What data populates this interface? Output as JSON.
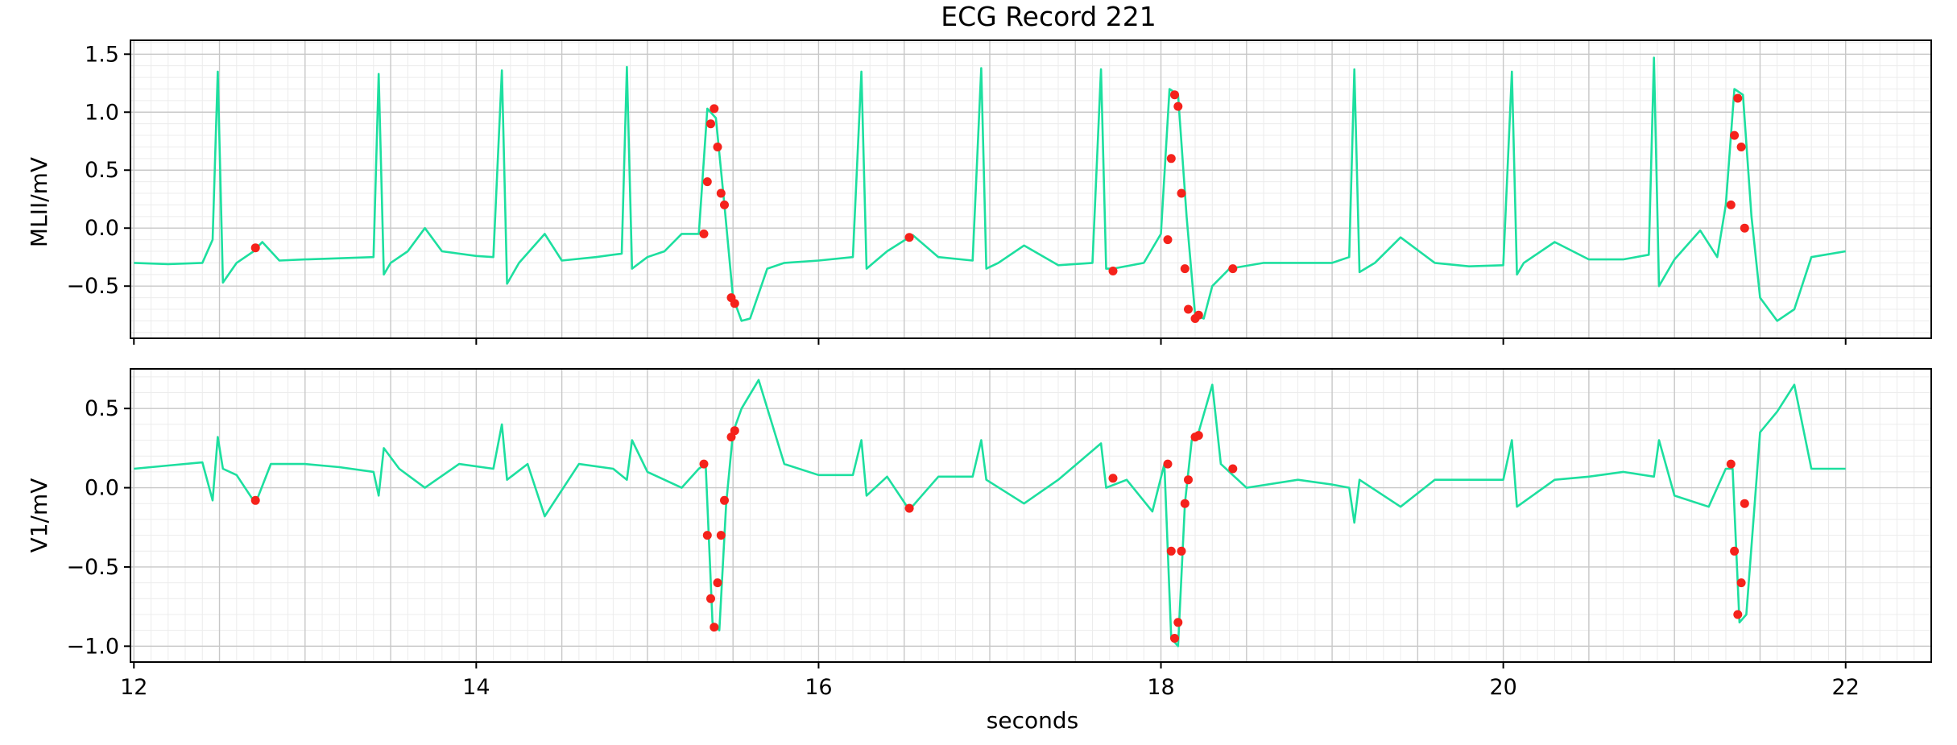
{
  "chart_data": {
    "type": "line",
    "title": "ECG Record 221",
    "xlabel": "seconds",
    "xlim": [
      11.98,
      22.5
    ],
    "x_ticks": [
      "12",
      "14",
      "16",
      "18",
      "20",
      "22"
    ],
    "x_tick_values": [
      12,
      14,
      16,
      18,
      20,
      22
    ],
    "grid": true,
    "minor_grid": true,
    "colors": {
      "signal": "#1ddf9f",
      "annotation": "#f5221b",
      "major_grid": "#c8c8c8",
      "minor_grid": "#ececec"
    },
    "panels": [
      {
        "ylabel": "MLII/mV",
        "ylim": [
          -0.95,
          1.62
        ],
        "y_ticks": [
          "1.5",
          "1.0",
          "0.5",
          "0.0",
          "−0.5"
        ],
        "y_tick_values": [
          1.5,
          1.0,
          0.5,
          0.0,
          -0.5
        ],
        "series": {
          "x": [
            12.0,
            12.2,
            12.4,
            12.46,
            12.49,
            12.52,
            12.6,
            12.7,
            12.75,
            12.85,
            13.0,
            13.2,
            13.4,
            13.43,
            13.46,
            13.5,
            13.6,
            13.7,
            13.8,
            14.0,
            14.1,
            14.15,
            14.18,
            14.25,
            14.4,
            14.5,
            14.7,
            14.85,
            14.88,
            14.91,
            15.0,
            15.1,
            15.2,
            15.3,
            15.35,
            15.4,
            15.45,
            15.5,
            15.55,
            15.6,
            15.7,
            15.8,
            16.0,
            16.2,
            16.25,
            16.28,
            16.32,
            16.4,
            16.55,
            16.7,
            16.9,
            16.95,
            16.98,
            17.05,
            17.2,
            17.4,
            17.6,
            17.65,
            17.68,
            17.72,
            17.9,
            18.0,
            18.05,
            18.1,
            18.15,
            18.2,
            18.25,
            18.3,
            18.4,
            18.6,
            18.8,
            19.0,
            19.1,
            19.13,
            19.16,
            19.25,
            19.4,
            19.6,
            19.8,
            20.0,
            20.05,
            20.08,
            20.12,
            20.3,
            20.5,
            20.7,
            20.85,
            20.88,
            20.91,
            21.0,
            21.15,
            21.25,
            21.3,
            21.35,
            21.4,
            21.45,
            21.5,
            21.6,
            21.7,
            21.8,
            22.0
          ],
          "y": [
            -0.3,
            -0.31,
            -0.3,
            -0.1,
            1.35,
            -0.47,
            -0.3,
            -0.2,
            -0.12,
            -0.28,
            -0.27,
            -0.26,
            -0.25,
            1.33,
            -0.4,
            -0.3,
            -0.2,
            0.0,
            -0.2,
            -0.24,
            -0.25,
            1.36,
            -0.48,
            -0.3,
            -0.05,
            -0.28,
            -0.25,
            -0.22,
            1.39,
            -0.35,
            -0.25,
            -0.2,
            -0.05,
            -0.05,
            1.03,
            0.95,
            0.2,
            -0.6,
            -0.8,
            -0.78,
            -0.35,
            -0.3,
            -0.28,
            -0.25,
            1.35,
            -0.35,
            -0.3,
            -0.2,
            -0.06,
            -0.25,
            -0.28,
            1.38,
            -0.35,
            -0.3,
            -0.15,
            -0.32,
            -0.3,
            1.37,
            -0.35,
            -0.35,
            -0.3,
            -0.05,
            1.2,
            1.15,
            0.1,
            -0.75,
            -0.78,
            -0.5,
            -0.35,
            -0.3,
            -0.3,
            -0.3,
            -0.25,
            1.37,
            -0.38,
            -0.3,
            -0.08,
            -0.3,
            -0.33,
            -0.32,
            1.35,
            -0.4,
            -0.3,
            -0.12,
            -0.27,
            -0.27,
            -0.23,
            1.47,
            -0.5,
            -0.27,
            -0.02,
            -0.25,
            0.2,
            1.2,
            1.15,
            0.1,
            -0.6,
            -0.8,
            -0.7,
            -0.25,
            -0.2
          ]
        },
        "annotations": {
          "x": [
            12.71,
            15.33,
            15.35,
            15.37,
            15.39,
            15.41,
            15.43,
            15.45,
            15.49,
            15.51,
            16.53,
            17.72,
            18.04,
            18.06,
            18.08,
            18.1,
            18.12,
            18.14,
            18.16,
            18.2,
            18.22,
            18.42,
            21.33,
            21.35,
            21.37,
            21.39,
            21.41
          ],
          "y": [
            -0.17,
            -0.05,
            0.4,
            0.9,
            1.03,
            0.7,
            0.3,
            0.2,
            -0.6,
            -0.65,
            -0.08,
            -0.37,
            -0.1,
            0.6,
            1.15,
            1.05,
            0.3,
            -0.35,
            -0.7,
            -0.78,
            -0.75,
            -0.35,
            0.2,
            0.8,
            1.12,
            0.7,
            0.0
          ]
        }
      },
      {
        "ylabel": "V1/mV",
        "ylim": [
          -1.1,
          0.75
        ],
        "y_ticks": [
          "0.5",
          "0.0",
          "−0.5",
          "−1.0"
        ],
        "y_tick_values": [
          0.5,
          0.0,
          -0.5,
          -1.0
        ],
        "series": {
          "x": [
            12.0,
            12.2,
            12.4,
            12.46,
            12.49,
            12.52,
            12.6,
            12.71,
            12.8,
            13.0,
            13.2,
            13.4,
            13.43,
            13.46,
            13.55,
            13.7,
            13.9,
            14.1,
            14.15,
            14.18,
            14.3,
            14.4,
            14.6,
            14.8,
            14.88,
            14.91,
            15.0,
            15.2,
            15.3,
            15.34,
            15.38,
            15.42,
            15.46,
            15.5,
            15.55,
            15.65,
            15.8,
            16.0,
            16.2,
            16.25,
            16.28,
            16.4,
            16.53,
            16.7,
            16.9,
            16.95,
            16.98,
            17.2,
            17.4,
            17.65,
            17.68,
            17.8,
            17.95,
            18.02,
            18.06,
            18.1,
            18.14,
            18.18,
            18.22,
            18.3,
            18.35,
            18.5,
            18.8,
            19.0,
            19.1,
            19.13,
            19.16,
            19.4,
            19.6,
            19.8,
            20.0,
            20.05,
            20.08,
            20.3,
            20.5,
            20.7,
            20.88,
            20.91,
            21.0,
            21.2,
            21.3,
            21.34,
            21.38,
            21.42,
            21.5,
            21.6,
            21.7,
            21.8,
            22.0
          ],
          "y": [
            0.12,
            0.14,
            0.16,
            -0.08,
            0.32,
            0.12,
            0.08,
            -0.1,
            0.15,
            0.15,
            0.13,
            0.1,
            -0.05,
            0.25,
            0.12,
            0.0,
            0.15,
            0.12,
            0.4,
            0.05,
            0.15,
            -0.18,
            0.15,
            0.12,
            0.05,
            0.3,
            0.1,
            0.0,
            0.12,
            0.15,
            -0.85,
            -0.9,
            -0.1,
            0.35,
            0.5,
            0.68,
            0.15,
            0.08,
            0.08,
            0.3,
            -0.05,
            0.07,
            -0.14,
            0.07,
            0.07,
            0.3,
            0.05,
            -0.1,
            0.05,
            0.28,
            0.0,
            0.05,
            -0.15,
            0.15,
            -0.95,
            -1.0,
            -0.1,
            0.3,
            0.35,
            0.65,
            0.15,
            0.0,
            0.05,
            0.02,
            0.0,
            -0.22,
            0.05,
            -0.12,
            0.05,
            0.05,
            0.05,
            0.3,
            -0.12,
            0.05,
            0.07,
            0.1,
            0.07,
            0.3,
            -0.05,
            -0.12,
            0.12,
            0.12,
            -0.85,
            -0.8,
            0.35,
            0.48,
            0.65,
            0.12,
            0.12
          ]
        },
        "annotations": {
          "x": [
            12.71,
            15.33,
            15.35,
            15.37,
            15.39,
            15.41,
            15.43,
            15.45,
            15.49,
            15.51,
            16.53,
            17.72,
            18.04,
            18.06,
            18.08,
            18.1,
            18.12,
            18.14,
            18.16,
            18.2,
            18.22,
            18.42,
            21.33,
            21.35,
            21.37,
            21.39,
            21.41
          ],
          "y": [
            -0.08,
            0.15,
            -0.3,
            -0.7,
            -0.88,
            -0.6,
            -0.3,
            -0.08,
            0.32,
            0.36,
            -0.13,
            0.06,
            0.15,
            -0.4,
            -0.95,
            -0.85,
            -0.4,
            -0.1,
            0.05,
            0.32,
            0.33,
            0.12,
            0.15,
            -0.4,
            -0.8,
            -0.6,
            -0.1
          ]
        }
      }
    ]
  }
}
